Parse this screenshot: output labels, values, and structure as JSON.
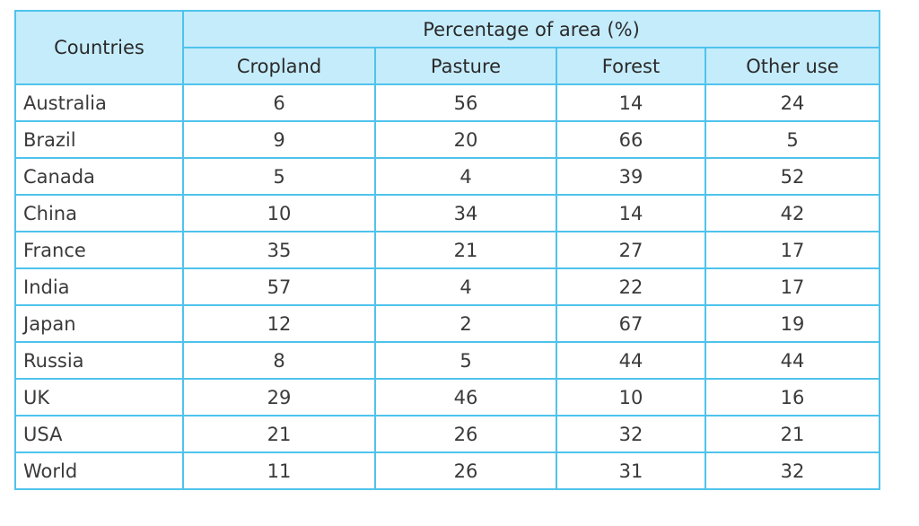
{
  "chart_data": {
    "type": "table",
    "title": "",
    "row_header": "Countries",
    "group_header": "Percentage of area (%)",
    "columns": [
      "Cropland",
      "Pasture",
      "Forest",
      "Other use"
    ],
    "rows": [
      {
        "country": "Australia",
        "values": [
          "6",
          "56",
          "14",
          "24"
        ]
      },
      {
        "country": "Brazil",
        "values": [
          "9",
          "20",
          "66",
          "5"
        ]
      },
      {
        "country": "Canada",
        "values": [
          "5",
          "4",
          "39",
          "52"
        ]
      },
      {
        "country": "China",
        "values": [
          "10",
          "34",
          "14",
          "42"
        ]
      },
      {
        "country": "France",
        "values": [
          "35",
          "21",
          "27",
          "17"
        ]
      },
      {
        "country": "India",
        "values": [
          "57",
          "4",
          "22",
          "17"
        ]
      },
      {
        "country": "Japan",
        "values": [
          "12",
          "2",
          "67",
          "19"
        ]
      },
      {
        "country": "Russia",
        "values": [
          "8",
          "5",
          "44",
          "44"
        ]
      },
      {
        "country": "UK",
        "values": [
          "29",
          "46",
          "10",
          "16"
        ]
      },
      {
        "country": "USA",
        "values": [
          "21",
          "26",
          "32",
          "21"
        ]
      },
      {
        "country": "World",
        "values": [
          "11",
          "26",
          "31",
          "32"
        ]
      }
    ]
  },
  "colors": {
    "header_background": "#c5ecfb",
    "border": "#4fc3ec",
    "text": "#3a3a3a"
  }
}
